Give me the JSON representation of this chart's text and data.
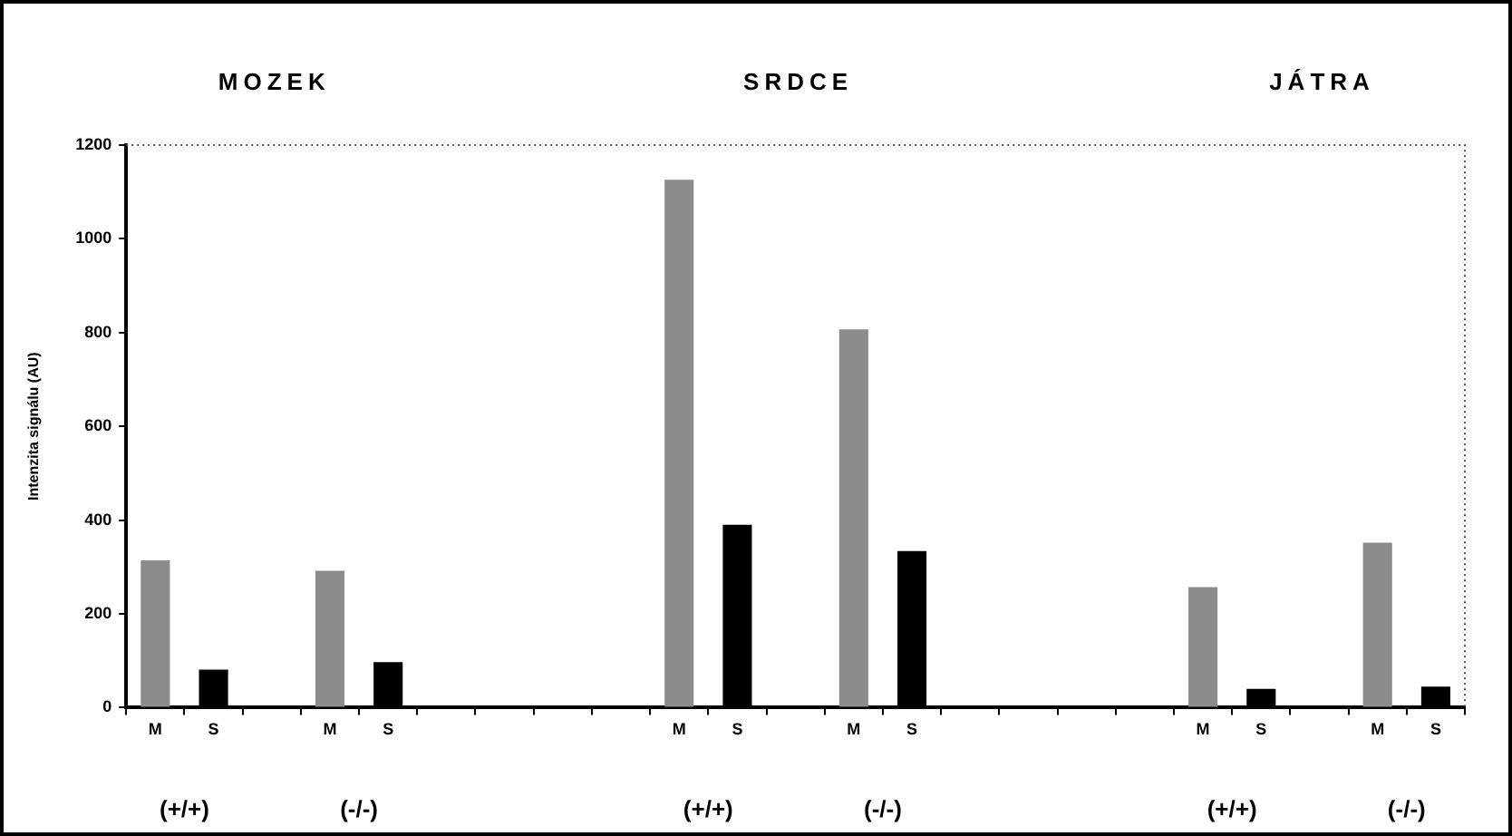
{
  "chart_data": {
    "type": "bar",
    "ylabel": "Intenzita signálu (AU)",
    "categories": [
      "M",
      "S",
      null,
      "M",
      "S",
      null,
      null,
      null,
      null,
      "M",
      "S",
      null,
      "M",
      "S",
      null,
      null,
      null,
      null,
      "M",
      "S",
      null,
      "M",
      "S"
    ],
    "values": [
      314,
      81,
      null,
      292,
      97,
      null,
      null,
      null,
      null,
      1126,
      390,
      null,
      807,
      334,
      null,
      null,
      null,
      null,
      257,
      40,
      null,
      352,
      45
    ],
    "colors": [
      "#8c8c8c",
      "#000000",
      null,
      "#8c8c8c",
      "#000000",
      null,
      null,
      null,
      null,
      "#8c8c8c",
      "#000000",
      null,
      "#8c8c8c",
      "#000000",
      null,
      null,
      null,
      null,
      "#8c8c8c",
      "#000000",
      null,
      "#8c8c8c",
      "#000000"
    ],
    "ylim": [
      0,
      1200
    ],
    "yticks": [
      0,
      200,
      400,
      600,
      800,
      1000,
      1200
    ],
    "annotations": [
      "MOZEK",
      "SRDCE",
      "JÁTRA",
      "(+/+)",
      "(-/-)",
      "(+/+)",
      "(-/-)",
      "(+/+)",
      "(-/-)"
    ]
  }
}
